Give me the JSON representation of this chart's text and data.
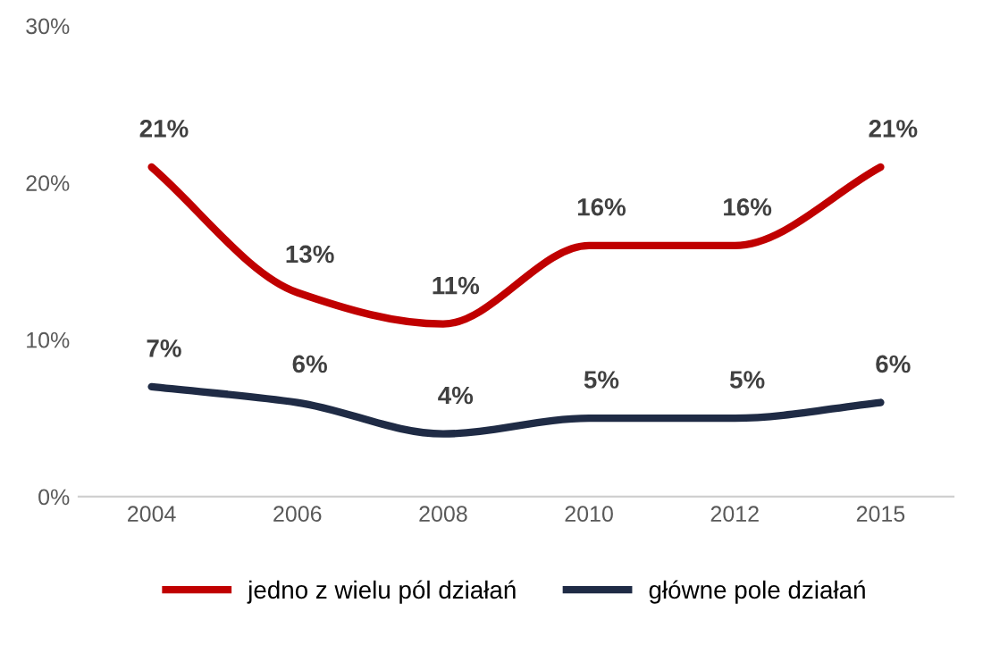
{
  "chart_data": {
    "type": "line",
    "categories": [
      "2004",
      "2006",
      "2008",
      "2010",
      "2012",
      "2015"
    ],
    "series": [
      {
        "name": "jedno z wielu pól działań",
        "color": "#c00000",
        "values": [
          21,
          13,
          11,
          16,
          16,
          21
        ],
        "value_labels": [
          "21%",
          "13%",
          "11%",
          "16%",
          "16%",
          "21%"
        ]
      },
      {
        "name": "główne pole działań",
        "color": "#1f2b45",
        "values": [
          7,
          6,
          4,
          5,
          5,
          6
        ],
        "value_labels": [
          "7%",
          "6%",
          "4%",
          "5%",
          "5%",
          "6%"
        ]
      }
    ],
    "ylim": [
      0,
      30
    ],
    "yticks": [
      {
        "value": 0,
        "label": "0%"
      },
      {
        "value": 10,
        "label": "10%"
      },
      {
        "value": 20,
        "label": "20%"
      },
      {
        "value": 30,
        "label": "30%"
      }
    ],
    "grid": false,
    "legend": "bottom",
    "marker": "none",
    "line_style": "solid"
  }
}
